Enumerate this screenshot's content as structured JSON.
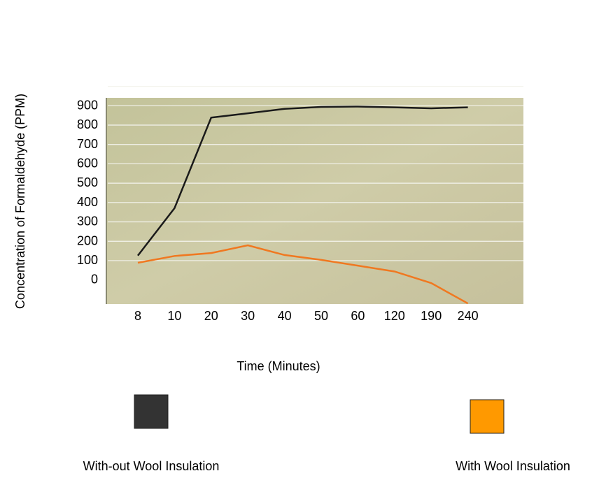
{
  "chart_data": {
    "type": "line",
    "x_label": "Time (Minutes)",
    "y_label": "Concentration of Formaldehyde (PPM)",
    "categories": [
      "8",
      "10",
      "20",
      "30",
      "40",
      "50",
      "60",
      "120",
      "190",
      "240"
    ],
    "series": [
      {
        "name": "With-out Wool Insulation",
        "color": "#1a1a1a",
        "values": [
          127,
          372,
          840,
          862,
          885,
          895,
          897,
          893,
          888,
          893
        ]
      },
      {
        "name": "With Wool Insulation",
        "color": "#f07820",
        "values": [
          90,
          125,
          140,
          180,
          130,
          105,
          75,
          45,
          -15,
          -120
        ]
      }
    ],
    "legend_colors": [
      "#333333",
      "#ff9900"
    ],
    "ylim": [
      -123,
      942
    ],
    "yticks": [
      0,
      100,
      200,
      300,
      400,
      500,
      600,
      700,
      800,
      900
    ],
    "grid": true
  }
}
